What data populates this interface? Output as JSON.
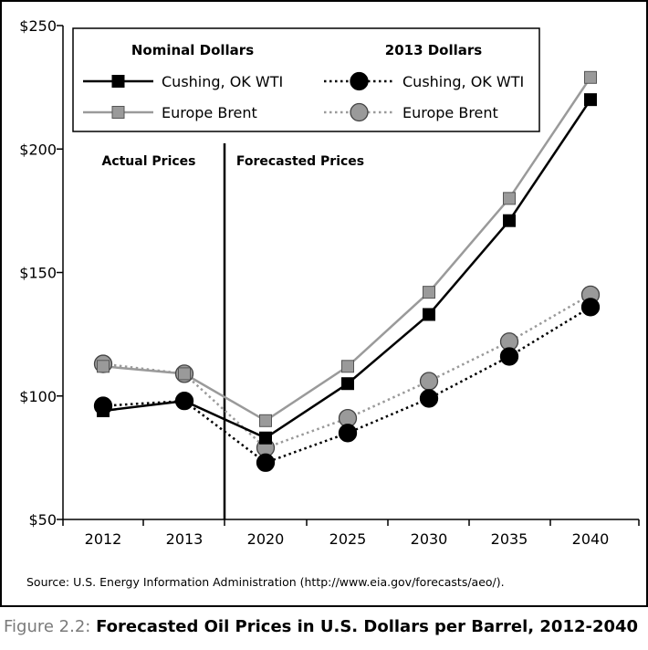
{
  "figure": {
    "number_label": "Figure 2.2:",
    "title": "Forecasted Oil Prices in U.S. Dollars per Barrel, 2012-2040",
    "source": "Source: U.S. Energy Information Administration (http://www.eia.gov/forecasts/aeo/)."
  },
  "chart_data": {
    "type": "line",
    "categories": [
      "2012",
      "2013",
      "2020",
      "2025",
      "2030",
      "2035",
      "2040"
    ],
    "ylim": [
      50,
      250
    ],
    "yticks": [
      50,
      100,
      150,
      200,
      250
    ],
    "ytick_labels": [
      "$50",
      "$100",
      "$150",
      "$200",
      "$250"
    ],
    "grid": false,
    "legend": {
      "placement": "top",
      "groups": [
        {
          "heading": "Nominal Dollars",
          "items": [
            "Cushing, OK WTI",
            "Europe Brent"
          ]
        },
        {
          "heading": "2013 Dollars",
          "items": [
            "Cushing, OK WTI",
            "Europe Brent"
          ]
        }
      ]
    },
    "annotations": {
      "left": "Actual Prices",
      "right": "Forecasted Prices",
      "divider_between": [
        "2013",
        "2020"
      ]
    },
    "series": [
      {
        "name": "Cushing, OK WTI",
        "group": "Nominal Dollars",
        "line": "solid",
        "marker": "square",
        "color": "#000000",
        "values": [
          94,
          98,
          83,
          105,
          133,
          171,
          220
        ]
      },
      {
        "name": "Europe Brent",
        "group": "Nominal Dollars",
        "line": "solid",
        "marker": "square",
        "color": "#999999",
        "values": [
          112,
          109,
          90,
          112,
          142,
          180,
          229
        ]
      },
      {
        "name": "Cushing, OK WTI",
        "group": "2013 Dollars",
        "line": "dotted",
        "marker": "circle",
        "color": "#000000",
        "values": [
          96,
          98,
          73,
          85,
          99,
          116,
          136
        ]
      },
      {
        "name": "Europe Brent",
        "group": "2013 Dollars",
        "line": "dotted",
        "marker": "circle",
        "color": "#999999",
        "values": [
          113,
          109,
          79,
          91,
          106,
          122,
          141
        ]
      }
    ]
  }
}
